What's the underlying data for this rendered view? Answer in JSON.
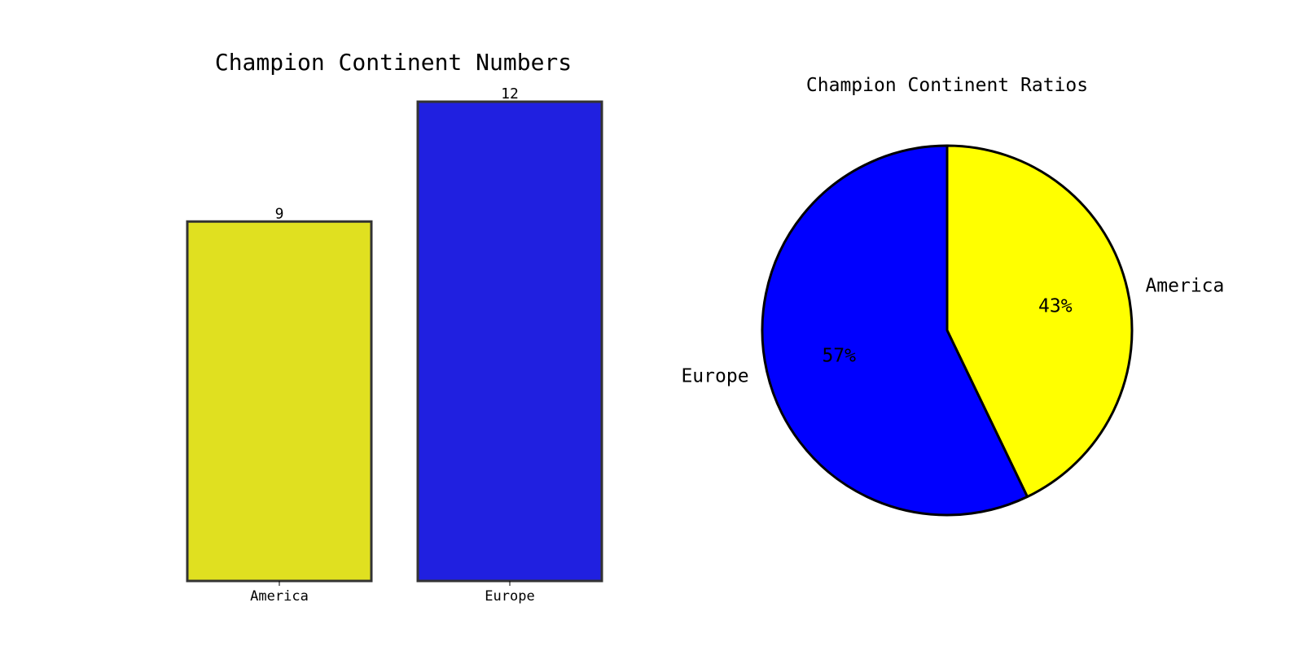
{
  "chart_data": [
    {
      "type": "bar",
      "title": "Champion Continent Numbers",
      "categories": [
        "America",
        "Europe"
      ],
      "values": [
        9,
        12
      ],
      "colors": [
        "#e0e020",
        "#2020e0"
      ],
      "edge_color": "#333333",
      "ylim": [
        0,
        12
      ],
      "xlabel": "",
      "ylabel": "",
      "grid": false,
      "y_axis_visible": false,
      "value_labels": [
        "9",
        "12"
      ]
    },
    {
      "type": "pie",
      "title": "Champion Continent Ratios",
      "labels": [
        "America",
        "Europe"
      ],
      "values": [
        9,
        12
      ],
      "percent_labels": [
        "43%",
        "57%"
      ],
      "colors": [
        "#ffff00",
        "#0000ff"
      ],
      "edge_color": "#000000",
      "start_angle_deg": 90,
      "direction": "clockwise"
    }
  ]
}
